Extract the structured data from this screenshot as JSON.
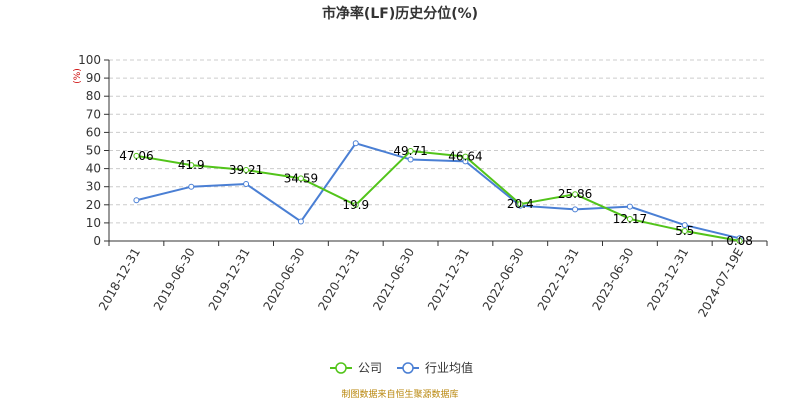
{
  "chart_data": {
    "type": "line",
    "title": "市净率(LF)历史分位(%)",
    "ylabel": "(%)",
    "xlabel": "",
    "ylim": [
      0,
      100
    ],
    "yticks": [
      0,
      10,
      20,
      30,
      40,
      50,
      60,
      70,
      80,
      90,
      100
    ],
    "categories": [
      "2018-12-31",
      "2019-06-30",
      "2019-12-31",
      "2020-06-30",
      "2020-12-31",
      "2021-06-30",
      "2021-12-31",
      "2022-06-30",
      "2022-12-31",
      "2023-06-30",
      "2023-12-31",
      "2024-07-19E"
    ],
    "grid": true,
    "legend_position": "bottom",
    "series": [
      {
        "name": "公司",
        "color": "#52c41a",
        "values": [
          47.06,
          41.9,
          39.21,
          34.59,
          19.9,
          49.71,
          46.64,
          20.4,
          25.86,
          12.17,
          5.5,
          0.08
        ],
        "labels": [
          "47.06",
          "41.9",
          "39.21",
          "34.59",
          "19.9",
          "49.71",
          "46.64",
          "20.4",
          "25.86",
          "12.17",
          "5.5",
          "0.08"
        ]
      },
      {
        "name": "行业均值",
        "color": "#4a7fd4",
        "values": [
          22.5,
          30.0,
          31.5,
          10.8,
          54.0,
          45.0,
          44.0,
          19.5,
          17.5,
          19.0,
          8.8,
          1.5
        ]
      }
    ],
    "source": "制图数据来自恒生聚源数据库"
  }
}
